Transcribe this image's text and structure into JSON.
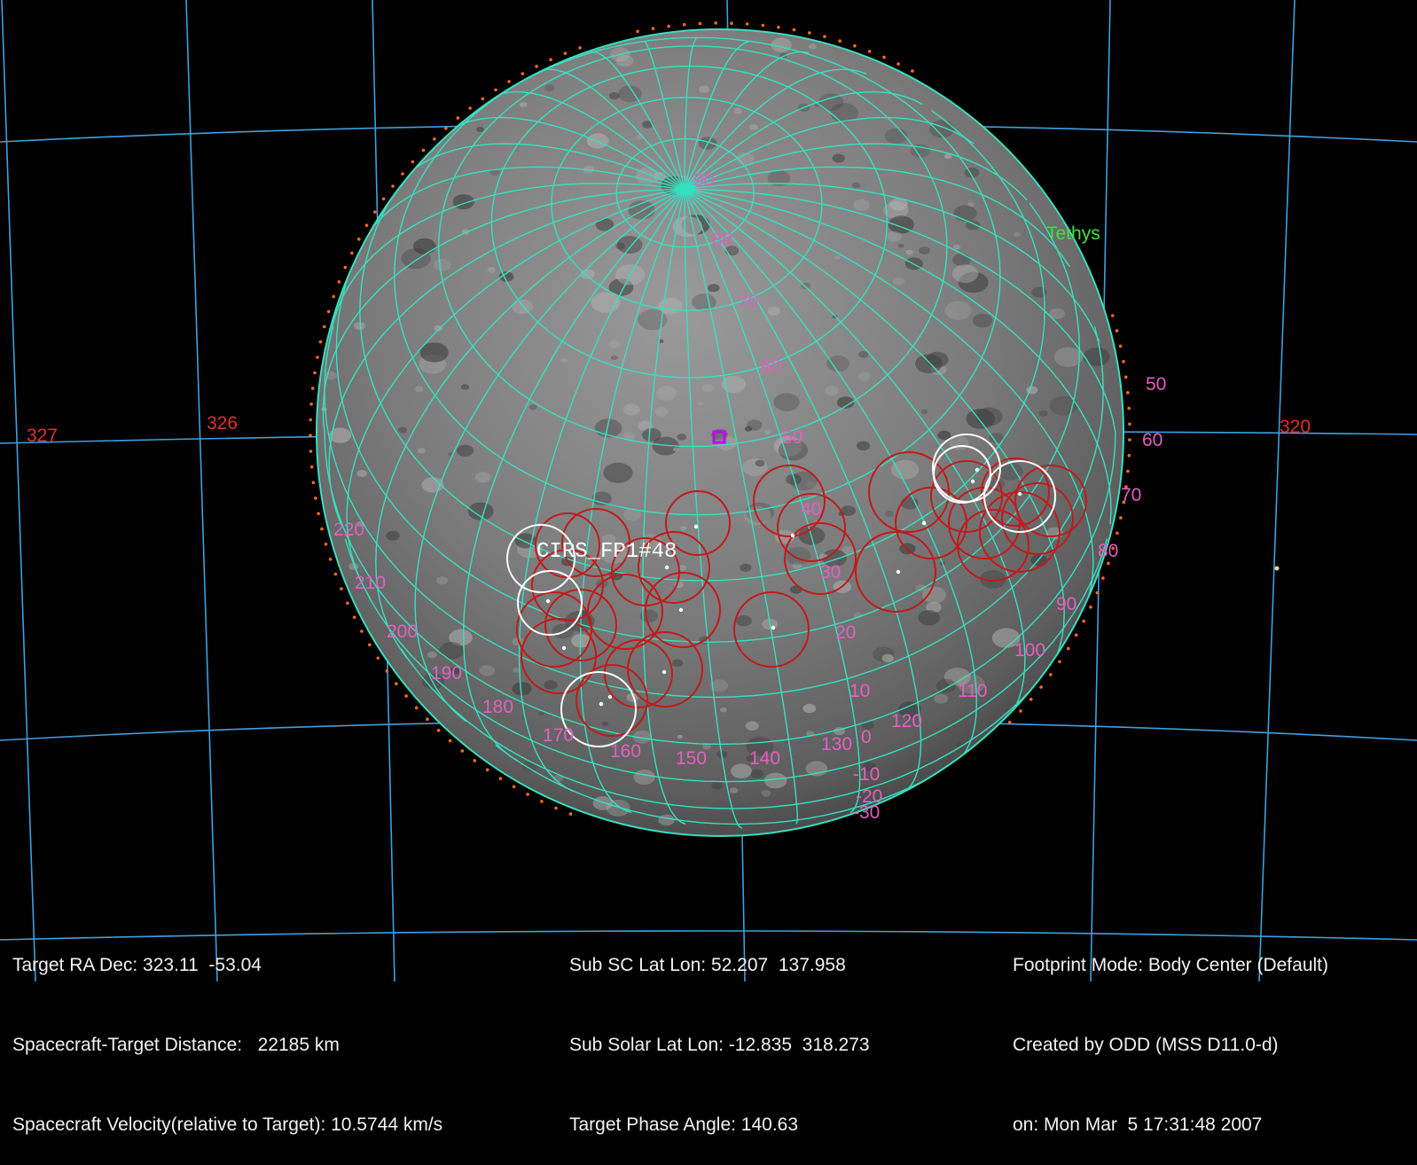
{
  "target_label": "Tethys",
  "footprint_label": "CIRS_FP1#48",
  "ra_grid_labels": [
    "327",
    "326",
    "320"
  ],
  "lat_labels": [
    "90",
    "80",
    "70",
    "60",
    "50",
    "40",
    "30",
    "20",
    "10",
    "0",
    "-10",
    "-20",
    "-30"
  ],
  "lon_labels_left": [
    "220",
    "210",
    "200",
    "190",
    "180",
    "170",
    "160",
    "150",
    "140",
    "130",
    "120",
    "110",
    "100",
    "90",
    "80",
    "70",
    "60",
    "50"
  ],
  "info_left": {
    "ra_dec": "Target RA Dec: 323.11  -53.04",
    "distance": "Spacecraft-Target Distance:   22185 km",
    "velocity": "Spacecraft Velocity(relative to Target): 10.5744 km/s"
  },
  "info_center": {
    "sub_sc": "Sub SC Lat Lon: 52.207  137.958",
    "sub_solar": "Sub Solar Lat Lon: -12.835  318.273",
    "phase": "Target Phase Angle: 140.63"
  },
  "info_right": {
    "mode": "Footprint Mode: Body Center (Default)",
    "created": "Created by ODD (MSS D11.0-d)",
    "date": "on: Mon Mar  5 17:31:48 2007"
  },
  "colors": {
    "grid_sky": "#3fa0e0",
    "grid_body": "#35e0c0",
    "footprint": "#c21a1a",
    "footprint_selected": "#ffffff",
    "label_lat_lon": "#e060c0",
    "label_ra": "#e03030",
    "limb_dots": "#ff6a1a",
    "subsc_marker": "#c000ff",
    "target_label": "#40e040"
  }
}
